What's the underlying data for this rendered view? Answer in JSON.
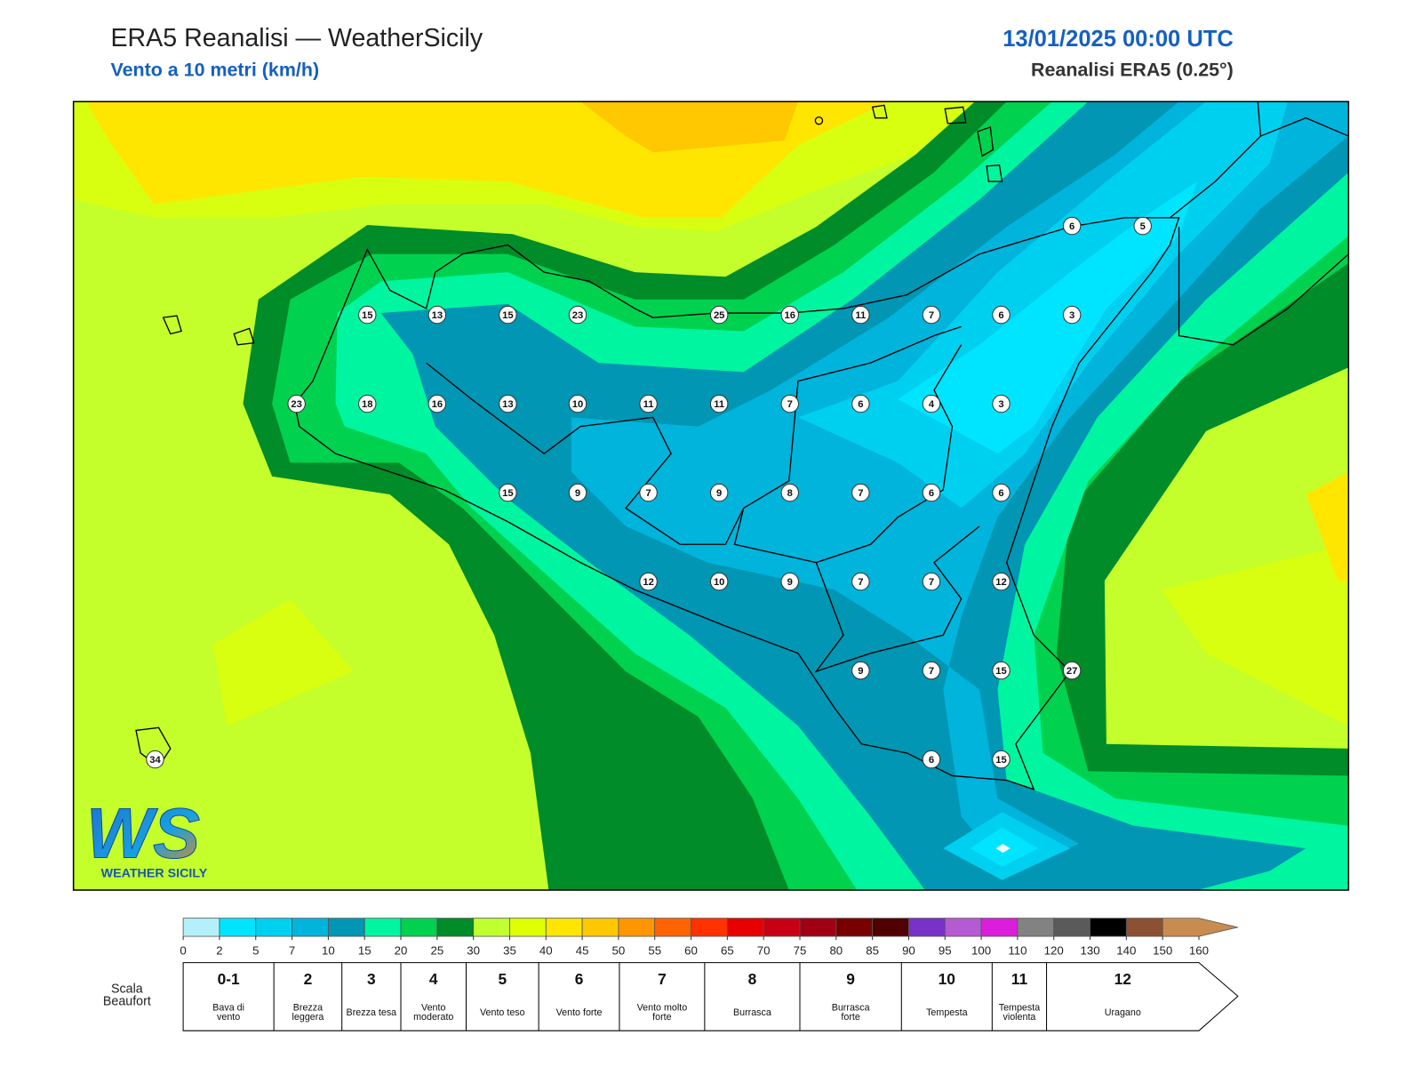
{
  "header": {
    "title": "ERA5 Reanalisi — WeatherSicily",
    "subtitle": "Vento a 10 metri (km/h)",
    "datetime": "13/01/2025 00:00 UTC",
    "source": "Reanalisi ERA5 (0.25°)"
  },
  "map": {
    "stations": {
      "values": [
        15,
        13,
        15,
        23,
        25,
        16,
        11,
        7,
        6,
        3,
        6,
        5,
        23,
        18,
        16,
        13,
        10,
        11,
        11,
        7,
        6,
        4,
        3,
        15,
        9,
        7,
        9,
        8,
        7,
        6,
        6,
        12,
        10,
        9,
        7,
        7,
        12,
        9,
        7,
        15,
        27,
        6,
        15,
        34
      ]
    }
  },
  "logo": {
    "mark": "WS",
    "name": "WEATHER SICILY"
  },
  "colorbar": {
    "ticks": [
      0,
      2,
      5,
      7,
      10,
      15,
      20,
      25,
      30,
      35,
      40,
      45,
      50,
      55,
      60,
      65,
      70,
      75,
      80,
      85,
      90,
      95,
      100,
      110,
      120,
      130,
      140,
      150,
      160
    ],
    "colors": [
      "#b4f0fa",
      "#00e5ff",
      "#00d0f0",
      "#00b4dc",
      "#0096b4",
      "#00f5a0",
      "#00d250",
      "#008c28",
      "#c0ff30",
      "#e0ff00",
      "#ffe600",
      "#ffc800",
      "#ff9600",
      "#ff6400",
      "#ff3200",
      "#e60000",
      "#c80014",
      "#a00014",
      "#780000",
      "#500000",
      "#7832c8",
      "#b45ad2",
      "#dc1edc",
      "#828282",
      "#5a5a5a",
      "#000000",
      "#8c5032",
      "#c88c50"
    ]
  },
  "beaufort": {
    "title": "Scala Beaufort",
    "levels": [
      {
        "number": "0-1",
        "label": "Bava di vento"
      },
      {
        "number": 2,
        "label": "Brezza leggera"
      },
      {
        "number": 3,
        "label": "Brezza tesa"
      },
      {
        "number": 4,
        "label": "Vento moderato"
      },
      {
        "number": 5,
        "label": "Vento teso"
      },
      {
        "number": 6,
        "label": "Vento forte"
      },
      {
        "number": 7,
        "label": "Vento molto forte"
      },
      {
        "number": 8,
        "label": "Burrasca"
      },
      {
        "number": 9,
        "label": "Burrasca forte"
      },
      {
        "number": 10,
        "label": "Tempesta"
      },
      {
        "number": 11,
        "label": "Tempesta violenta"
      },
      {
        "number": 12,
        "label": "Uragano"
      }
    ]
  }
}
